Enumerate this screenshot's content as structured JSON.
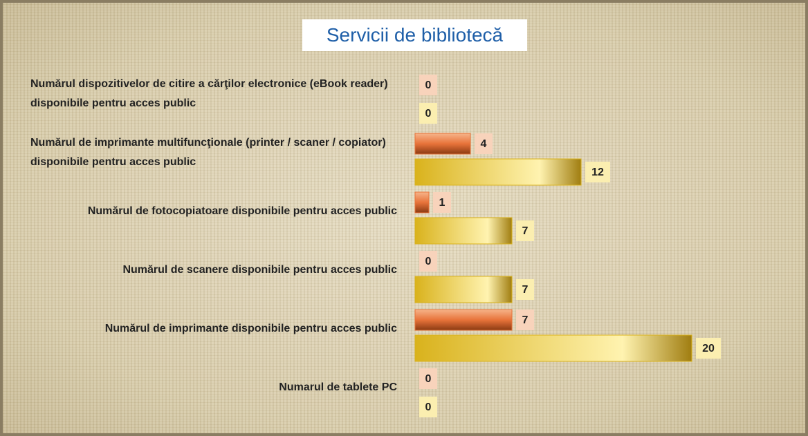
{
  "chart_data": {
    "type": "barh",
    "title": "Servicii de bibliotecă",
    "categories": [
      "Numărul dispozitivelor de citire a cărţilor electronice (eBook reader) disponibile pentru acces public",
      "Numărul de imprimante multifuncţionale (printer / scaner / copiator) disponibile pentru acces public",
      "Numărul de fotocopiatoare disponibile pentru acces public",
      "Numărul de scanere disponibile pentru acces public",
      "Numărul de imprimante disponibile pentru acces public",
      "Numarul de tablete PC"
    ],
    "series": [
      {
        "color": "#e8733a",
        "values": [
          0,
          4,
          1,
          0,
          7,
          0
        ]
      },
      {
        "color": "#d9b21c",
        "values": [
          0,
          12,
          7,
          7,
          20,
          0
        ]
      }
    ],
    "xlim": [
      0,
      22
    ]
  }
}
